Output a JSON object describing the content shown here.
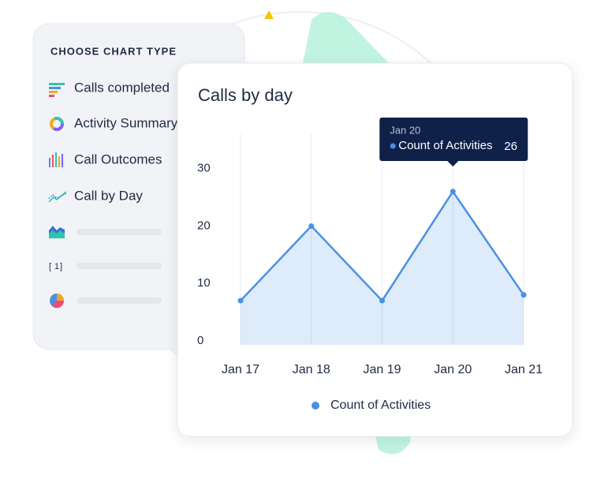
{
  "panel": {
    "title": "CHOOSE CHART TYPE",
    "items": [
      "Calls completed",
      "Activity Summary",
      "Call Outcomes",
      "Call by Day"
    ]
  },
  "chart_data": {
    "type": "line",
    "title": "Calls by day",
    "categories": [
      "Jan 17",
      "Jan 18",
      "Jan 19",
      "Jan 20",
      "Jan 21"
    ],
    "series": [
      {
        "name": "Count of Activities",
        "color": "#4a90e2",
        "values": [
          7,
          20,
          7,
          26,
          8
        ]
      }
    ],
    "ylim": [
      0,
      36
    ],
    "yticks": [
      0,
      10,
      20,
      30
    ],
    "area": true,
    "legend": "bottom"
  }
}
